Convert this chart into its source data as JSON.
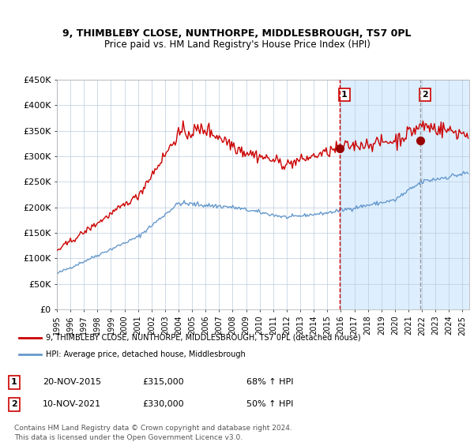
{
  "title_line1": "9, THIMBLEBY CLOSE, NUNTHORPE, MIDDLESBROUGH, TS7 0PL",
  "title_line2": "Price paid vs. HM Land Registry's House Price Index (HPI)",
  "ylabel_ticks": [
    "£0",
    "£50K",
    "£100K",
    "£150K",
    "£200K",
    "£250K",
    "£300K",
    "£350K",
    "£400K",
    "£450K"
  ],
  "ylabel_values": [
    0,
    50000,
    100000,
    150000,
    200000,
    250000,
    300000,
    350000,
    400000,
    450000
  ],
  "ylim": [
    0,
    450000
  ],
  "sale1_date_num": 2015.89,
  "sale1_price": 315000,
  "sale1_label": "1",
  "sale2_date_num": 2021.86,
  "sale2_price": 330000,
  "sale2_label": "2",
  "shaded_start": 2015.89,
  "shaded_end": 2025.0,
  "red_line_color": "#cc0000",
  "blue_line_color": "#6699cc",
  "shade_color": "#ddeeff",
  "vline1_color": "#cc0000",
  "vline2_color": "#999999",
  "dot_color": "#990000",
  "legend_red_label": "9, THIMBLEBY CLOSE, NUNTHORPE, MIDDLESBROUGH, TS7 0PL (detached house)",
  "legend_blue_label": "HPI: Average price, detached house, Middlesbrough",
  "table_row1": [
    "1",
    "20-NOV-2015",
    "£315,000",
    "68% ↑ HPI"
  ],
  "table_row2": [
    "2",
    "10-NOV-2021",
    "£330,000",
    "50% ↑ HPI"
  ],
  "footer": "Contains HM Land Registry data © Crown copyright and database right 2024.\nThis data is licensed under the Open Government Licence v3.0.",
  "xmin": 1995.0,
  "xmax": 2025.5
}
